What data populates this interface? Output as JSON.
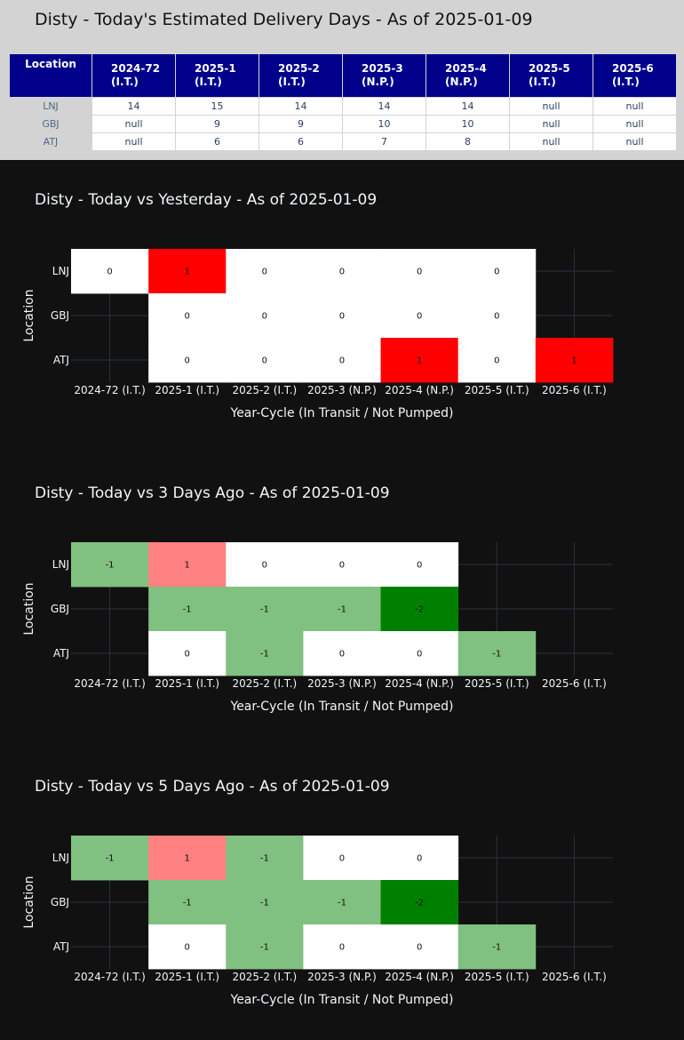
{
  "table": {
    "title": "Disty - Today's Estimated Delivery Days - As of 2025-01-09",
    "location_header": "Location",
    "columns": [
      {
        "line1": "2024-72",
        "line2": "(I.T.)"
      },
      {
        "line1": "2025-1",
        "line2": "(I.T.)"
      },
      {
        "line1": "2025-2",
        "line2": "(I.T.)"
      },
      {
        "line1": "2025-3",
        "line2": "(N.P.)"
      },
      {
        "line1": "2025-4",
        "line2": "(N.P.)"
      },
      {
        "line1": "2025-5",
        "line2": "(I.T.)"
      },
      {
        "line1": "2025-6",
        "line2": "(I.T.)"
      }
    ],
    "rows": [
      {
        "location": "LNJ",
        "values": [
          "14",
          "15",
          "14",
          "14",
          "14",
          "null",
          "null"
        ]
      },
      {
        "location": "GBJ",
        "values": [
          "null",
          "9",
          "9",
          "10",
          "10",
          "null",
          "null"
        ]
      },
      {
        "location": "ATJ",
        "values": [
          "null",
          "6",
          "6",
          "7",
          "8",
          "null",
          "null"
        ]
      }
    ]
  },
  "chart_data": [
    {
      "type": "heatmap",
      "title": "Disty - Today vs Yesterday - As of 2025-01-09",
      "xlabel": "Year-Cycle (In Transit / Not Pumped)",
      "ylabel": "Location",
      "x": [
        "2024-72 (I.T.)",
        "2025-1 (I.T.)",
        "2025-2 (I.T.)",
        "2025-3 (N.P.)",
        "2025-4 (N.P.)",
        "2025-5 (I.T.)",
        "2025-6 (I.T.)"
      ],
      "y": [
        "LNJ",
        "GBJ",
        "ATJ"
      ],
      "z": [
        [
          0,
          1,
          0,
          0,
          0,
          0,
          null
        ],
        [
          null,
          0,
          0,
          0,
          0,
          0,
          null
        ],
        [
          null,
          0,
          0,
          0,
          1,
          0,
          1
        ]
      ],
      "colors": {
        "positive": "#ff0000",
        "zero": "#ffffff"
      }
    },
    {
      "type": "heatmap",
      "title": "Disty - Today vs 3 Days Ago - As of 2025-01-09",
      "xlabel": "Year-Cycle (In Transit / Not Pumped)",
      "ylabel": "Location",
      "x": [
        "2024-72 (I.T.)",
        "2025-1 (I.T.)",
        "2025-2 (I.T.)",
        "2025-3 (N.P.)",
        "2025-4 (N.P.)",
        "2025-5 (I.T.)",
        "2025-6 (I.T.)"
      ],
      "y": [
        "LNJ",
        "GBJ",
        "ATJ"
      ],
      "z": [
        [
          -1,
          1,
          0,
          0,
          0,
          null,
          null
        ],
        [
          null,
          -1,
          -1,
          -1,
          -2,
          null,
          null
        ],
        [
          null,
          0,
          -1,
          0,
          0,
          -1,
          null
        ]
      ],
      "colors": {
        "positive": "#ff8080",
        "zero": "#ffffff",
        "negative_light": "#80c080",
        "negative_dark": "#008000"
      }
    },
    {
      "type": "heatmap",
      "title": "Disty - Today vs 5 Days Ago - As of 2025-01-09",
      "xlabel": "Year-Cycle (In Transit / Not Pumped)",
      "ylabel": "Location",
      "x": [
        "2024-72 (I.T.)",
        "2025-1 (I.T.)",
        "2025-2 (I.T.)",
        "2025-3 (N.P.)",
        "2025-4 (N.P.)",
        "2025-5 (I.T.)",
        "2025-6 (I.T.)"
      ],
      "y": [
        "LNJ",
        "GBJ",
        "ATJ"
      ],
      "z": [
        [
          -1,
          1,
          -1,
          0,
          0,
          null,
          null
        ],
        [
          null,
          -1,
          -1,
          -1,
          -2,
          null,
          null
        ],
        [
          null,
          0,
          -1,
          0,
          0,
          -1,
          null
        ]
      ],
      "colors": {
        "positive": "#ff8080",
        "zero": "#ffffff",
        "negative_light": "#80c080",
        "negative_dark": "#008000"
      }
    }
  ],
  "theme": {
    "chart_background": "#111111",
    "grid_color": "#283442",
    "text_color": "#f2f5fa",
    "header_blue": "#00008b"
  }
}
